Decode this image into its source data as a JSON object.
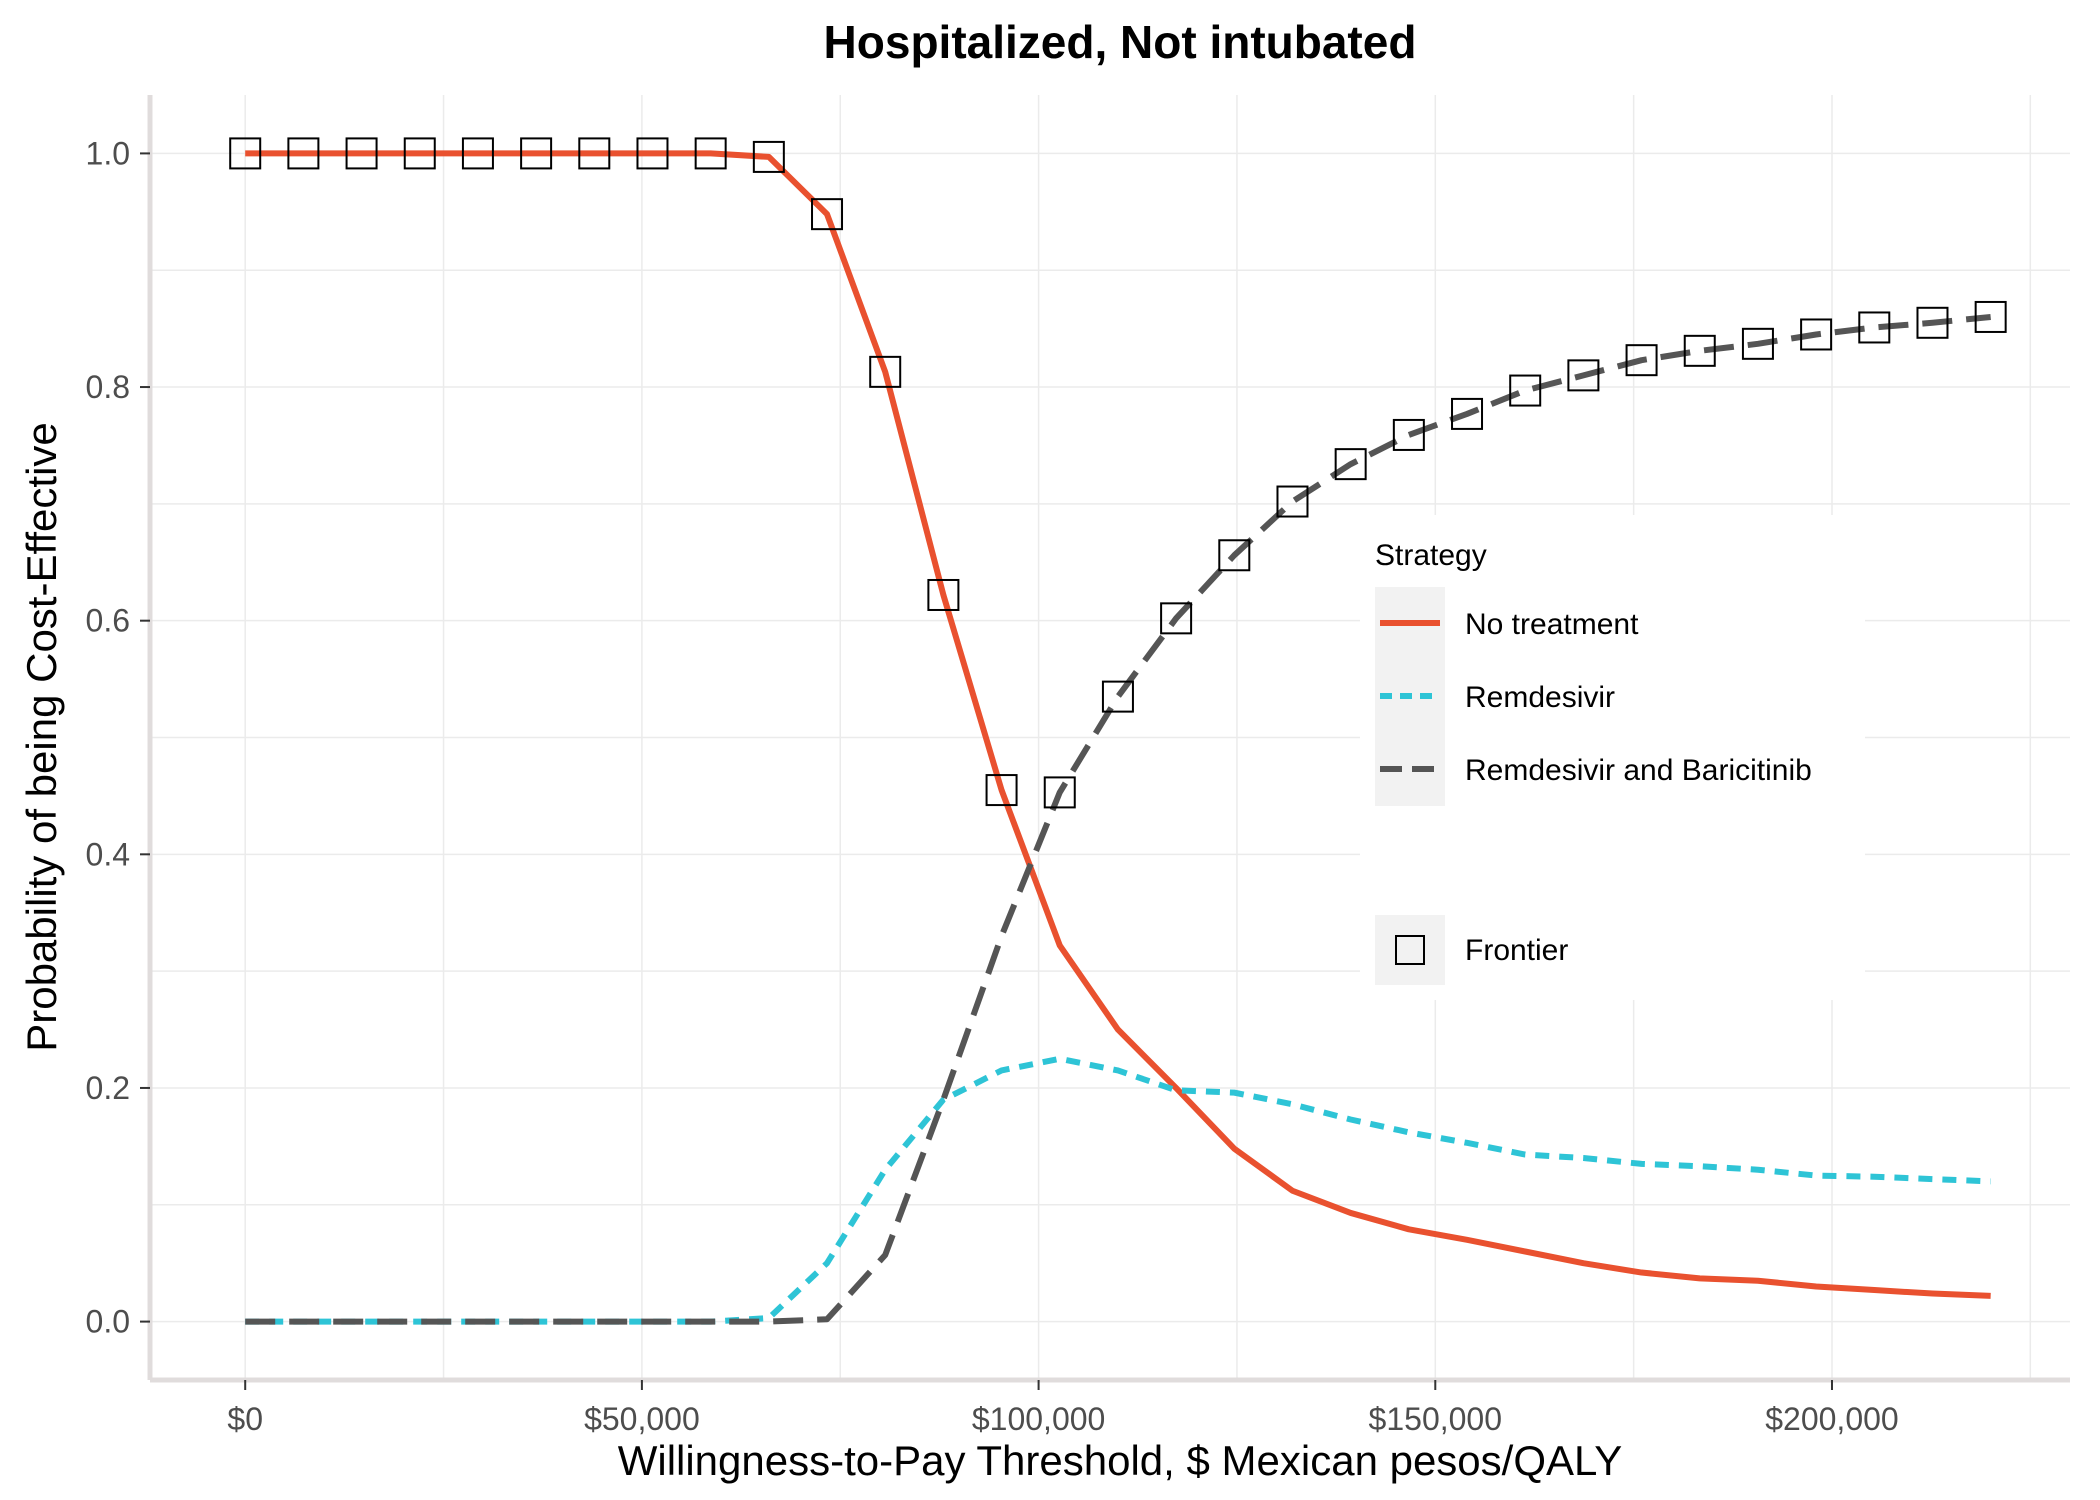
{
  "chart_data": {
    "type": "line",
    "title": "Hospitalized, Not intubated",
    "xlabel": "Willingness-to-Pay Threshold, $ Mexican pesos/QALY",
    "ylabel": "Probability of being Cost-Effective",
    "xlim": [
      -12000,
      230000
    ],
    "ylim": [
      -0.05,
      1.05
    ],
    "x_ticks": [
      0,
      50000,
      100000,
      150000,
      200000
    ],
    "x_tick_labels": [
      "$0",
      "$50,000",
      "$100,000",
      "$150,000",
      "$200,000"
    ],
    "y_ticks": [
      0,
      0.2,
      0.4,
      0.6,
      0.8,
      1.0
    ],
    "y_tick_labels": [
      "0.0",
      "0.2",
      "0.4",
      "0.6",
      "0.8",
      "1.0"
    ],
    "grid": true,
    "legend": {
      "title": "Strategy",
      "placement": "right-inside",
      "frontier_label": "Frontier"
    },
    "x": [
      0,
      7333,
      14667,
      22000,
      29333,
      36667,
      44000,
      51333,
      58667,
      66000,
      73333,
      80667,
      88000,
      95333,
      102667,
      110000,
      117333,
      124667,
      132000,
      139333,
      146667,
      154000,
      161333,
      168667,
      176000,
      183333,
      190667,
      198000,
      205333,
      212667,
      220000
    ],
    "series": [
      {
        "name": "No treatment",
        "color": "#e9512f",
        "dash": "solid",
        "values": [
          1.0,
          1.0,
          1.0,
          1.0,
          1.0,
          1.0,
          1.0,
          1.0,
          1.0,
          0.997,
          0.948,
          0.813,
          0.622,
          0.455,
          0.322,
          0.25,
          0.2,
          0.148,
          0.112,
          0.093,
          0.079,
          0.07,
          0.06,
          0.05,
          0.042,
          0.037,
          0.035,
          0.03,
          0.027,
          0.024,
          0.022
        ]
      },
      {
        "name": "Remdesivir",
        "color": "#2ec4d6",
        "dash": "short",
        "values": [
          0,
          0,
          0,
          0,
          0,
          0,
          0,
          0,
          0,
          0.003,
          0.05,
          0.13,
          0.19,
          0.215,
          0.225,
          0.215,
          0.198,
          0.196,
          0.186,
          0.173,
          0.162,
          0.153,
          0.143,
          0.14,
          0.135,
          0.133,
          0.13,
          0.125,
          0.124,
          0.122,
          0.12
        ]
      },
      {
        "name": "Remdesivir and Baricitinib",
        "color": "#555555",
        "dash": "long",
        "values": [
          0,
          0,
          0,
          0,
          0,
          0,
          0,
          0,
          0,
          0,
          0.002,
          0.057,
          0.19,
          0.33,
          0.453,
          0.535,
          0.602,
          0.656,
          0.702,
          0.734,
          0.759,
          0.777,
          0.797,
          0.81,
          0.823,
          0.831,
          0.837,
          0.845,
          0.851,
          0.855,
          0.86
        ]
      }
    ],
    "frontier": {
      "x": [
        0,
        7333,
        14667,
        22000,
        29333,
        36667,
        44000,
        51333,
        58667,
        66000,
        73333,
        80667,
        88000,
        95333,
        102667,
        110000,
        117333,
        124667,
        132000,
        139333,
        146667,
        154000,
        161333,
        168667,
        176000,
        183333,
        190667,
        198000,
        205333,
        212667,
        220000
      ],
      "y": [
        1.0,
        1.0,
        1.0,
        1.0,
        1.0,
        1.0,
        1.0,
        1.0,
        1.0,
        0.997,
        0.948,
        0.813,
        0.622,
        0.455,
        0.453,
        0.535,
        0.602,
        0.656,
        0.702,
        0.734,
        0.759,
        0.777,
        0.797,
        0.81,
        0.823,
        0.831,
        0.837,
        0.845,
        0.851,
        0.855,
        0.86
      ]
    }
  }
}
